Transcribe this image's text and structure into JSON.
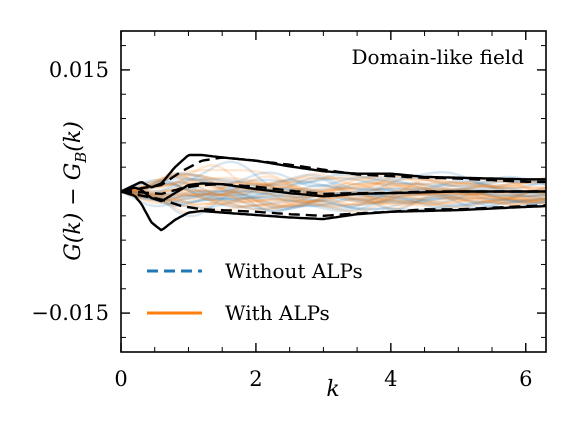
{
  "chart_data": {
    "type": "line",
    "annotation": "Domain-like field",
    "xlabel": "k",
    "ylabel": "G(k) − G_B(k)",
    "ylabel_parts": {
      "main": "G(k) − G",
      "sub": "B",
      "tail": "(k)"
    },
    "xlim": [
      0,
      6.3
    ],
    "ylim": [
      -0.0198,
      0.0198
    ],
    "xticks": [
      0,
      2,
      4,
      6
    ],
    "xtick_labels": [
      "0",
      "2",
      "4",
      "6"
    ],
    "yticks": [
      -0.015,
      0.015
    ],
    "ytick_labels": [
      "−0.015",
      "0.015"
    ],
    "grid": false,
    "legend_placement": "lower-left",
    "legend": [
      {
        "label": "Without ALPs",
        "style": "dashed",
        "color": "#1f77b4"
      },
      {
        "label": "With ALPs",
        "style": "solid",
        "color": "#ff7f0e"
      }
    ],
    "series": [
      {
        "name": "With ALPs",
        "style": "solid",
        "color": "#000000",
        "bands": [
          {
            "id": "upper",
            "x": [
              0,
              0.2,
              0.3,
              0.45,
              0.6,
              0.8,
              1.0,
              1.2,
              1.5,
              2.0,
              2.5,
              3.0,
              3.5,
              4.0,
              4.5,
              5.0,
              5.5,
              6.0,
              6.3
            ],
            "y": [
              0,
              0.0008,
              0.0012,
              0.0005,
              0.001,
              0.003,
              0.0045,
              0.0045,
              0.0042,
              0.0038,
              0.0031,
              0.0025,
              0.0022,
              0.0022,
              0.0018,
              0.0017,
              0.0016,
              0.0015,
              0.0015
            ]
          },
          {
            "id": "median",
            "x": [
              0,
              0.2,
              0.3,
              0.45,
              0.6,
              0.8,
              1.0,
              1.2,
              1.5,
              2.0,
              2.5,
              3.0,
              3.5,
              4.0,
              4.5,
              5.0,
              5.5,
              6.0,
              6.3
            ],
            "y": [
              0,
              0.0005,
              0.0002,
              -0.0008,
              -0.0012,
              -0.0002,
              0.0008,
              0.001,
              0.0009,
              0.0003,
              -0.0002,
              -0.0006,
              -0.0003,
              -0.0002,
              -0.0001,
              0.0,
              0.0,
              0.0,
              0.0
            ]
          },
          {
            "id": "lower",
            "x": [
              0,
              0.2,
              0.3,
              0.45,
              0.6,
              0.8,
              1.0,
              1.2,
              1.5,
              2.0,
              2.5,
              3.0,
              3.5,
              4.0,
              4.5,
              5.0,
              5.5,
              6.0,
              6.3
            ],
            "y": [
              0,
              -0.0005,
              -0.0015,
              -0.0038,
              -0.0048,
              -0.0035,
              -0.0026,
              -0.0024,
              -0.0026,
              -0.0029,
              -0.0032,
              -0.0034,
              -0.0028,
              -0.0025,
              -0.0024,
              -0.0023,
              -0.0021,
              -0.0019,
              -0.0018
            ]
          }
        ]
      },
      {
        "name": "Without ALPs",
        "style": "dashed",
        "color": "#000000",
        "bands": [
          {
            "id": "upper",
            "x": [
              0,
              0.3,
              0.6,
              0.9,
              1.2,
              1.5,
              2.0,
              2.5,
              3.0,
              3.5,
              4.0,
              4.5,
              5.0,
              5.5,
              6.0,
              6.3
            ],
            "y": [
              0,
              0.0004,
              0.0008,
              0.0025,
              0.0038,
              0.0042,
              0.0038,
              0.0033,
              0.0027,
              0.0021,
              0.0019,
              0.0017,
              0.0016,
              0.0014,
              0.0012,
              0.0012
            ]
          },
          {
            "id": "median",
            "x": [
              0,
              0.3,
              0.6,
              0.9,
              1.2,
              1.5,
              2.0,
              2.5,
              3.0,
              3.5,
              4.0,
              4.5,
              5.0,
              5.5,
              6.0,
              6.3
            ],
            "y": [
              0,
              -0.0001,
              -0.0003,
              0.0004,
              0.0008,
              0.0009,
              0.0006,
              0.0001,
              -0.0003,
              -0.0002,
              -0.0002,
              0.0,
              0.0,
              0.0,
              0.0,
              0.0
            ]
          },
          {
            "id": "lower",
            "x": [
              0,
              0.3,
              0.6,
              0.9,
              1.2,
              1.5,
              2.0,
              2.5,
              3.0,
              3.5,
              4.0,
              4.5,
              5.0,
              5.5,
              6.0,
              6.3
            ],
            "y": [
              0,
              -0.0005,
              -0.001,
              -0.0018,
              -0.0022,
              -0.0023,
              -0.0025,
              -0.0028,
              -0.003,
              -0.0027,
              -0.0025,
              -0.0022,
              -0.0022,
              -0.002,
              -0.0018,
              -0.0017
            ]
          }
        ]
      }
    ],
    "realizations": {
      "count_with_alps": 22,
      "count_without_alps": 22,
      "color_with_alps": "#ff7f0e",
      "color_without_alps": "#1f77b4",
      "opacity": 0.18
    }
  }
}
